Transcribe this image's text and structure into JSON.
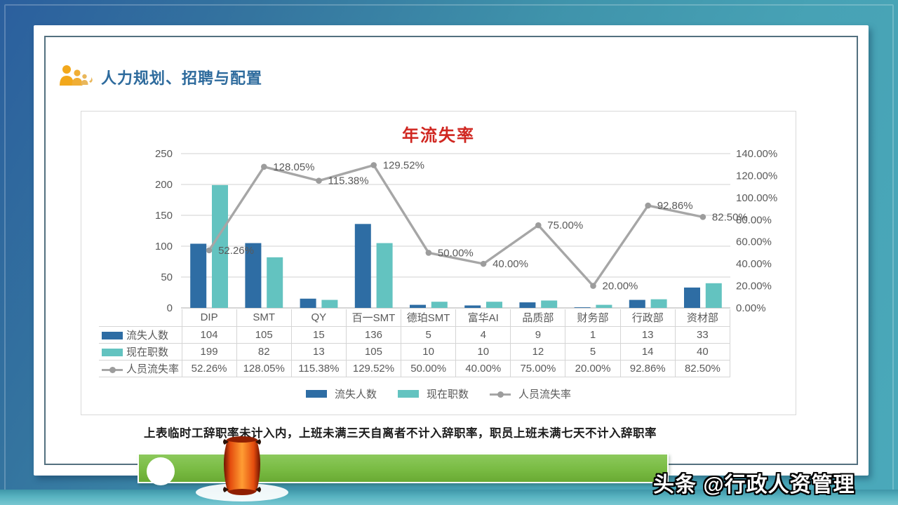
{
  "header": {
    "title": "人力规划、招聘与配置"
  },
  "chart_data": {
    "type": "bar+line",
    "title": "年流失率",
    "categories": [
      "DIP",
      "SMT",
      "QY",
      "百一SMT",
      "德珀SMT",
      "富华AI",
      "品质部",
      "财务部",
      "行政部",
      "资材部"
    ],
    "series": [
      {
        "name": "流失人数",
        "type": "bar",
        "axis": "left",
        "color": "#2e6da4",
        "values": [
          104,
          105,
          15,
          136,
          5,
          4,
          9,
          1,
          13,
          33
        ]
      },
      {
        "name": "现在职数",
        "type": "bar",
        "axis": "left",
        "color": "#63c3c0",
        "values": [
          199,
          82,
          13,
          105,
          10,
          10,
          12,
          5,
          14,
          40
        ]
      },
      {
        "name": "人员流失率",
        "type": "line",
        "axis": "right",
        "color": "#a6a6a6",
        "values": [
          52.26,
          128.05,
          115.38,
          129.52,
          50.0,
          40.0,
          75.0,
          20.0,
          92.86,
          82.5
        ],
        "labels": [
          "52.26%",
          "128.05%",
          "115.38%",
          "129.52%",
          "50.00%",
          "40.00%",
          "75.00%",
          "20.00%",
          "92.86%",
          "82.50%"
        ]
      }
    ],
    "left_axis": {
      "min": 0,
      "max": 250,
      "step": 50,
      "ticks": [
        "0",
        "50",
        "100",
        "150",
        "200",
        "250"
      ]
    },
    "right_axis": {
      "min": 0,
      "max": 140,
      "step": 20,
      "ticks": [
        "0.00%",
        "20.00%",
        "40.00%",
        "60.00%",
        "80.00%",
        "100.00%",
        "120.00%",
        "140.00%"
      ]
    },
    "grid": true,
    "legend_position": "bottom"
  },
  "table": {
    "row_labels": [
      "流失人数",
      "现在职数",
      "人员流失率"
    ],
    "rows": [
      [
        "104",
        "105",
        "15",
        "136",
        "5",
        "4",
        "9",
        "1",
        "13",
        "33"
      ],
      [
        "199",
        "82",
        "13",
        "105",
        "10",
        "10",
        "12",
        "5",
        "14",
        "40"
      ],
      [
        "52.26%",
        "128.05%",
        "115.38%",
        "129.52%",
        "50.00%",
        "40.00%",
        "75.00%",
        "20.00%",
        "92.86%",
        "82.50%"
      ]
    ]
  },
  "footer_note": "上表临时工辞职率未计入内，上班未满三天自离者不计入辞职率，职员上班未满七天不计入辞职率",
  "watermark": "头条 @行政人资管理",
  "colors": {
    "bar1": "#2e6da4",
    "bar2": "#63c3c0",
    "line": "#a6a6a6",
    "title_red": "#d02721",
    "header_blue": "#2e6b9d",
    "icon_orange": "#f2a81c",
    "green_bar": "#79bb43",
    "axis_text": "#595959",
    "grid": "#d9d9d9",
    "bg_blue": "#2b5f9e",
    "bg_teal": "#4aa9ba"
  }
}
